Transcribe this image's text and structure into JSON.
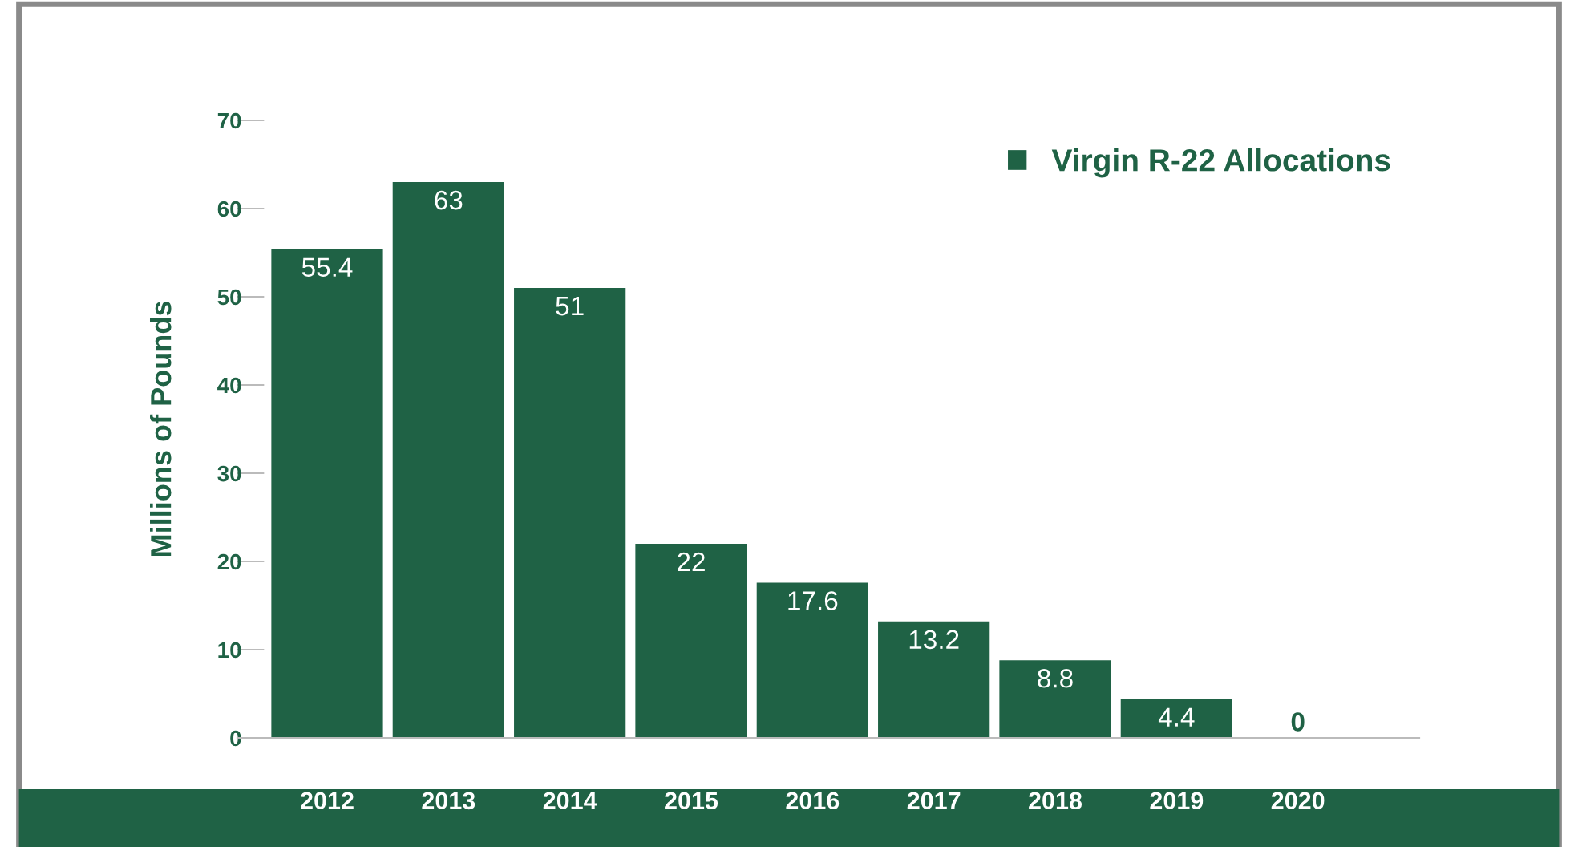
{
  "chart_data": {
    "type": "bar",
    "ylabel": "Millions of Pounds",
    "categories": [
      "2012",
      "2013",
      "2014",
      "2015",
      "2016",
      "2017",
      "2018",
      "2019",
      "2020"
    ],
    "series": [
      {
        "name": "Virgin R-22 Allocations",
        "color": "#1f6245",
        "values": [
          55.4,
          63,
          51,
          22,
          17.6,
          13.2,
          8.8,
          4.4,
          0
        ]
      }
    ],
    "ylim": [
      0,
      70
    ],
    "yticks": [
      0,
      10,
      20,
      30,
      40,
      50,
      60,
      70
    ],
    "grid": false,
    "legend": "top right",
    "data_labels": true
  }
}
